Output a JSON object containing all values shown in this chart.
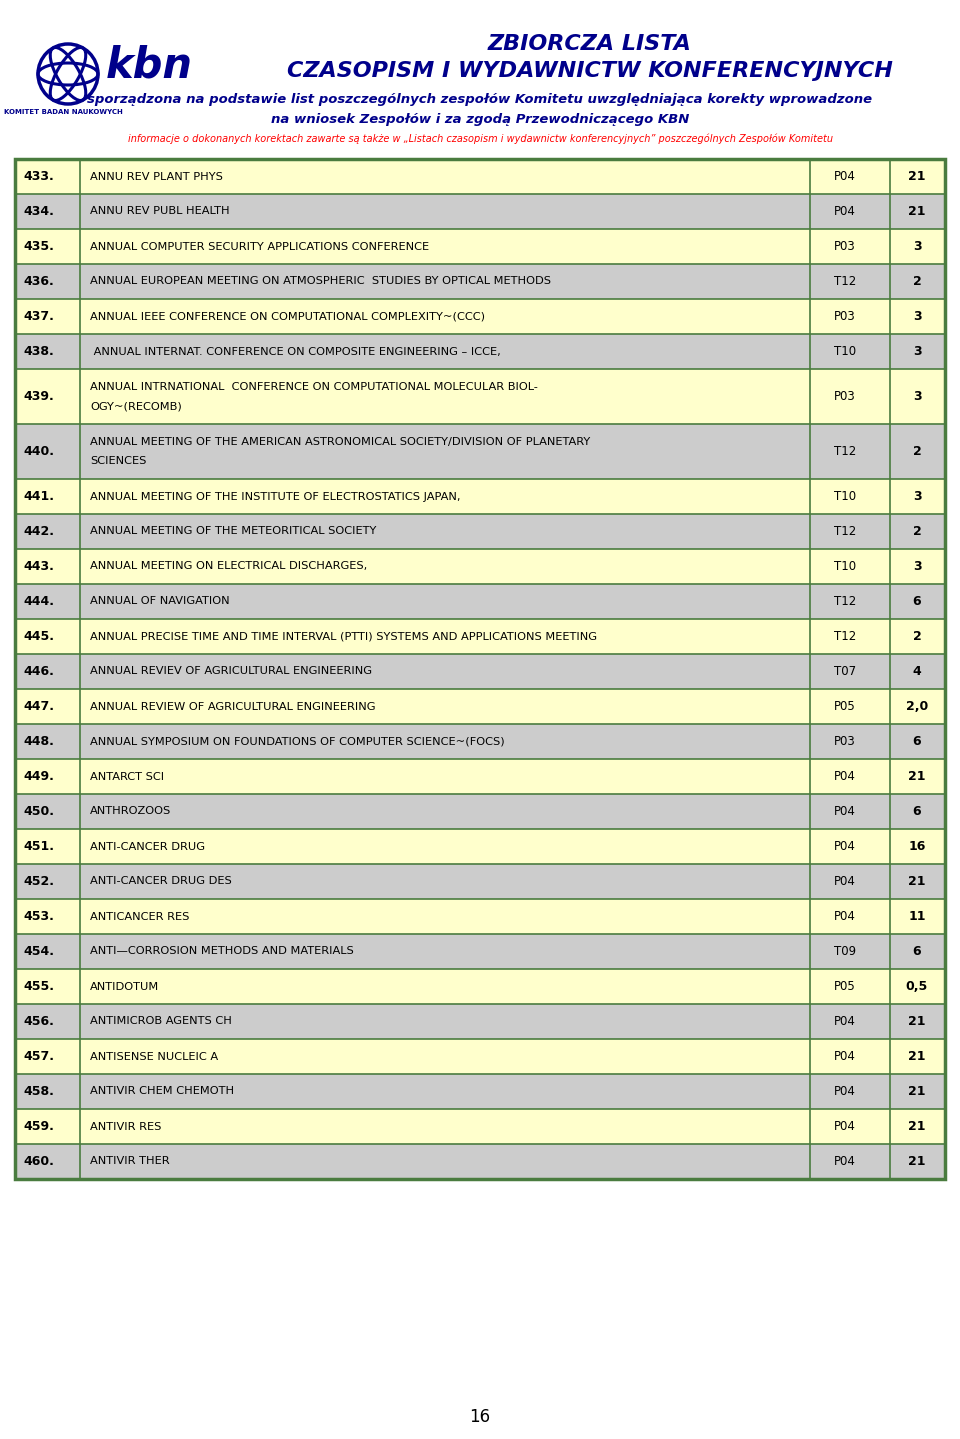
{
  "title_line1": "ZBIORCZA LISTA",
  "title_line2": "CZASOPISM I WYDAWNICTW KONFERENCYJNYCH",
  "subtitle_line1": "sporządzona na podstawie list poszczególnych zespołów Komitetu uwzględniająca korekty wprowadzone",
  "subtitle_line2": "na wniosek Zespołów i za zgodą Przewodniczącego KBN",
  "info_line": "informacje o dokonanych korektach zawarte są także w „Listach czasopism i wydawnictw konferencyjnych” poszczególnych Zespołów Komitetu",
  "page_number": "16",
  "bg_color": "#ffffff",
  "table_border_color": "#4a7c3f",
  "row_colors": [
    "#ffffcc",
    "#cccccc"
  ],
  "title_color": "#00008b",
  "info_color": "#ff0000",
  "rows": [
    {
      "num": "433.",
      "name": "ANNU REV PLANT PHYS",
      "code": "P04",
      "val": "21",
      "lines": 1
    },
    {
      "num": "434.",
      "name": "ANNU REV PUBL HEALTH",
      "code": "P04",
      "val": "21",
      "lines": 1
    },
    {
      "num": "435.",
      "name": "ANNUAL COMPUTER SECURITY APPLICATIONS CONFERENCE",
      "code": "P03",
      "val": "3",
      "lines": 1
    },
    {
      "num": "436.",
      "name": "ANNUAL EUROPEAN MEETING ON ATMOSPHERIC  STUDIES BY OPTICAL METHODS",
      "code": "T12",
      "val": "2",
      "lines": 1
    },
    {
      "num": "437.",
      "name": "ANNUAL IEEE CONFERENCE ON COMPUTATIONAL COMPLEXITY~(CCC)",
      "code": "P03",
      "val": "3",
      "lines": 1
    },
    {
      "num": "438.",
      "name": " ANNUAL INTERNAT. CONFERENCE ON COMPOSITE ENGINEERING – ICCE,",
      "code": "T10",
      "val": "3",
      "lines": 1
    },
    {
      "num": "439.",
      "name": "ANNUAL INTRNATIONAL  CONFERENCE ON COMPUTATIONAL MOLECULAR BIOL-",
      "name2": "OGY~(RECOMB)",
      "code": "P03",
      "val": "3",
      "lines": 2
    },
    {
      "num": "440.",
      "name": "ANNUAL MEETING OF THE AMERICAN ASTRONOMICAL SOCIETY/DIVISION OF PLANETARY",
      "name2": "SCIENCES",
      "code": "T12",
      "val": "2",
      "lines": 2
    },
    {
      "num": "441.",
      "name": "ANNUAL MEETING OF THE INSTITUTE OF ELECTROSTATICS JAPAN,",
      "code": "T10",
      "val": "3",
      "lines": 1
    },
    {
      "num": "442.",
      "name": "ANNUAL MEETING OF THE METEORITICAL SOCIETY",
      "code": "T12",
      "val": "2",
      "lines": 1
    },
    {
      "num": "443.",
      "name": "ANNUAL MEETING ON ELECTRICAL DISCHARGES,",
      "code": "T10",
      "val": "3",
      "lines": 1
    },
    {
      "num": "444.",
      "name": "ANNUAL OF NAVIGATION",
      "code": "T12",
      "val": "6",
      "lines": 1
    },
    {
      "num": "445.",
      "name": "ANNUAL PRECISE TIME AND TIME INTERVAL (PTTI) SYSTEMS AND APPLICATIONS MEETING",
      "code": "T12",
      "val": "2",
      "lines": 1
    },
    {
      "num": "446.",
      "name": "ANNUAL REVIEV OF AGRICULTURAL ENGINEERING",
      "code": "T07",
      "val": "4",
      "lines": 1
    },
    {
      "num": "447.",
      "name": "ANNUAL REVIEW OF AGRICULTURAL ENGINEERING",
      "code": "P05",
      "val": "2,0",
      "lines": 1
    },
    {
      "num": "448.",
      "name": "ANNUAL SYMPOSIUM ON FOUNDATIONS OF COMPUTER SCIENCE~(FOCS)",
      "code": "P03",
      "val": "6",
      "lines": 1
    },
    {
      "num": "449.",
      "name": "ANTARCT SCI",
      "code": "P04",
      "val": "21",
      "lines": 1
    },
    {
      "num": "450.",
      "name": "ANTHROZOOS",
      "code": "P04",
      "val": "6",
      "lines": 1
    },
    {
      "num": "451.",
      "name": "ANTI-CANCER DRUG",
      "code": "P04",
      "val": "16",
      "lines": 1
    },
    {
      "num": "452.",
      "name": "ANTI-CANCER DRUG DES",
      "code": "P04",
      "val": "21",
      "lines": 1
    },
    {
      "num": "453.",
      "name": "ANTICANCER RES",
      "code": "P04",
      "val": "11",
      "lines": 1
    },
    {
      "num": "454.",
      "name": "ANTI—CORROSION METHODS AND MATERIALS",
      "code": "T09",
      "val": "6",
      "lines": 1
    },
    {
      "num": "455.",
      "name": "ANTIDOTUM",
      "code": "P05",
      "val": "0,5",
      "lines": 1
    },
    {
      "num": "456.",
      "name": "ANTIMICROB AGENTS CH",
      "code": "P04",
      "val": "21",
      "lines": 1
    },
    {
      "num": "457.",
      "name": "ANTISENSE NUCLEIC A",
      "code": "P04",
      "val": "21",
      "lines": 1
    },
    {
      "num": "458.",
      "name": "ANTIVIR CHEM CHEMOTH",
      "code": "P04",
      "val": "21",
      "lines": 1
    },
    {
      "num": "459.",
      "name": "ANTIVIR RES",
      "code": "P04",
      "val": "21",
      "lines": 1
    },
    {
      "num": "460.",
      "name": "ANTIVIR THER",
      "code": "P04",
      "val": "21",
      "lines": 1
    }
  ]
}
